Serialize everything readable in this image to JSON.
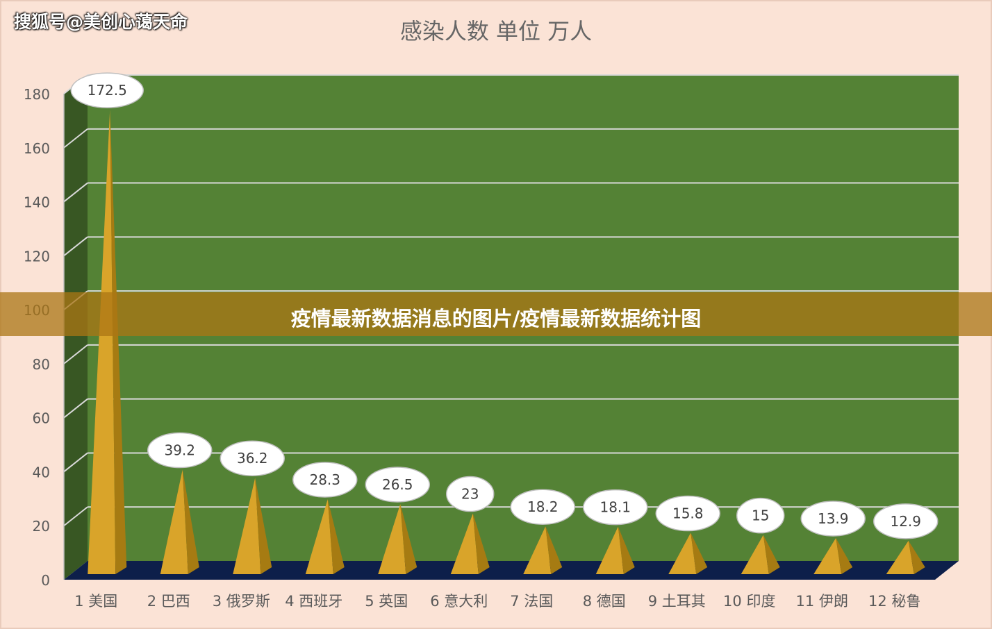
{
  "watermark": "搜狐号@美创心蔼天命",
  "banner": {
    "text": "疫情最新数据消息的图片/疫情最新数据统计图"
  },
  "colors": {
    "background": "#fbe3d6",
    "wall": "#548235",
    "side_wall": "#385723",
    "floor": "#0d1f4a",
    "cone_light": "#d9a42a",
    "cone_dark": "#a67b12",
    "banner": "#ab7614"
  },
  "chart_data": {
    "type": "bar",
    "title": "感染人数 单位 万人",
    "categories": [
      "1 美国",
      "2 巴西",
      "3 俄罗斯",
      "4 西班牙",
      "5 英国",
      "6 意大利",
      "7 法国",
      "8 德国",
      "9 土耳其",
      "10 印度",
      "11 伊朗",
      "12 秘鲁"
    ],
    "series": [
      {
        "values": [
          172.5,
          39.2,
          36.2,
          28.3,
          26.5,
          23,
          18.2,
          18.1,
          15.8,
          15,
          13.9,
          12.9
        ]
      }
    ],
    "data_labels": [
      "172.5",
      "39.2",
      "36.2",
      "28.3",
      "26.5",
      "23",
      "18.2",
      "18.1",
      "15.8",
      "15",
      "13.9",
      "12.9"
    ],
    "yticks": [
      "0",
      "20",
      "40",
      "60",
      "80",
      "100",
      "120",
      "140",
      "160",
      "180"
    ],
    "ylim": [
      0,
      180
    ],
    "grid": true,
    "style": "3d-cone"
  }
}
